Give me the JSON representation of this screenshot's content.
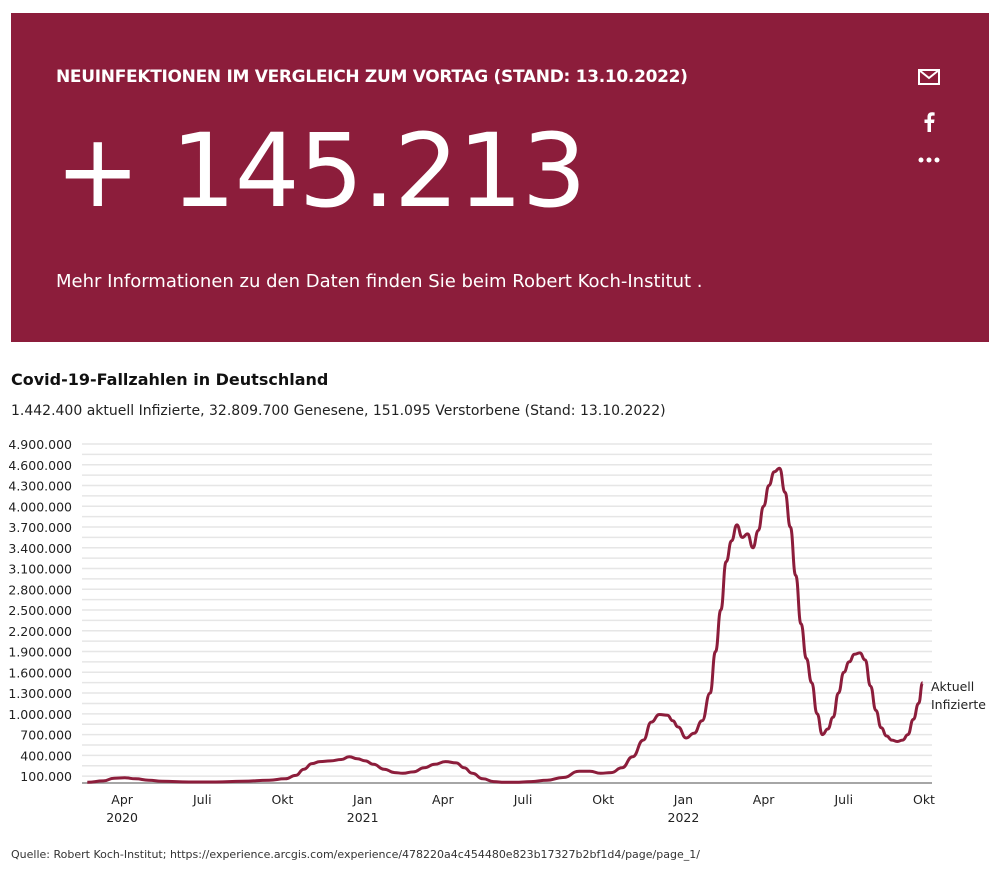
{
  "banner": {
    "title": "NEUINFEKTIONEN IM VERGLEICH ZUM VORTAG (STAND: 13.10.2022)",
    "value": "+ 145.213",
    "info": "Mehr Informationen zu den Daten finden Sie beim Robert Koch-Institut .",
    "background": "#8c1d3b",
    "share_icons": [
      "mail-icon",
      "facebook-icon",
      "more-icon"
    ]
  },
  "source": "Quelle: Robert Koch-Institut; https://experience.arcgis.com/experience/478220a4c454480e823b17327b2bf1d4/page/page_1/",
  "chart_data": {
    "type": "line",
    "title": "Covid-19-Fallzahlen in Deutschland",
    "subtitle": "1.442.400 aktuell Infizierte, 32.809.700 Genesene, 151.095 Verstorbene (Stand: 13.10.2022)",
    "xlabel": "",
    "ylabel": "",
    "line_color": "#8c1d3b",
    "grid": true,
    "ylim": [
      0,
      4900000
    ],
    "yticks": [
      100000,
      400000,
      700000,
      1000000,
      1300000,
      1600000,
      1900000,
      2200000,
      2500000,
      2800000,
      3100000,
      3400000,
      3700000,
      4000000,
      4300000,
      4600000,
      4900000
    ],
    "ytick_labels": [
      "100.000",
      "400.000",
      "700.000",
      "1.000.000",
      "1.300.000",
      "1.600.000",
      "1.900.000",
      "2.200.000",
      "2.500.000",
      "2.800.000",
      "3.100.000",
      "3.400.000",
      "3.700.000",
      "4.000.000",
      "4.300.000",
      "4.600.000",
      "4.900.000"
    ],
    "xlim_months": [
      0,
      31.8
    ],
    "xticks": [
      {
        "m": 1.5,
        "label": "Apr",
        "year": "2020"
      },
      {
        "m": 4.5,
        "label": "Juli",
        "year": ""
      },
      {
        "m": 7.5,
        "label": "Okt",
        "year": ""
      },
      {
        "m": 10.5,
        "label": "Jan",
        "year": "2021"
      },
      {
        "m": 13.5,
        "label": "Apr",
        "year": ""
      },
      {
        "m": 16.5,
        "label": "Juli",
        "year": ""
      },
      {
        "m": 19.5,
        "label": "Okt",
        "year": ""
      },
      {
        "m": 22.5,
        "label": "Jan",
        "year": "2022"
      },
      {
        "m": 25.5,
        "label": "Apr",
        "year": ""
      },
      {
        "m": 28.5,
        "label": "Juli",
        "year": ""
      },
      {
        "m": 31.5,
        "label": "Okt",
        "year": ""
      }
    ],
    "series": [
      {
        "name": "Aktuell Infizierte",
        "label_lines": [
          "Aktuell",
          "Infizierte"
        ],
        "x_months": [
          0.2,
          0.8,
          1.2,
          1.6,
          2.0,
          2.5,
          3.0,
          4.0,
          5.0,
          6.0,
          7.0,
          7.6,
          8.0,
          8.3,
          8.6,
          8.9,
          9.3,
          9.7,
          10.0,
          10.3,
          10.6,
          10.9,
          11.3,
          11.7,
          12.0,
          12.4,
          12.8,
          13.2,
          13.6,
          14.0,
          14.3,
          14.6,
          15.0,
          15.4,
          15.8,
          16.2,
          16.8,
          17.4,
          18.0,
          18.6,
          19.0,
          19.4,
          19.8,
          20.2,
          20.6,
          21.0,
          21.3,
          21.6,
          21.9,
          22.1,
          22.3,
          22.6,
          22.9,
          23.2,
          23.5,
          23.7,
          23.9,
          24.1,
          24.3,
          24.5,
          24.7,
          24.9,
          25.1,
          25.3,
          25.5,
          25.7,
          25.9,
          26.1,
          26.3,
          26.5,
          26.7,
          26.9,
          27.1,
          27.3,
          27.5,
          27.7,
          27.9,
          28.1,
          28.3,
          28.5,
          28.7,
          28.9,
          29.1,
          29.3,
          29.5,
          29.7,
          29.9,
          30.1,
          30.3,
          30.5,
          30.7,
          30.9,
          31.1,
          31.3,
          31.45
        ],
        "values": [
          10000,
          30000,
          70000,
          75000,
          60000,
          40000,
          25000,
          15000,
          15000,
          25000,
          40000,
          60000,
          110000,
          200000,
          280000,
          310000,
          320000,
          340000,
          380000,
          350000,
          320000,
          270000,
          200000,
          150000,
          140000,
          160000,
          220000,
          270000,
          310000,
          290000,
          220000,
          140000,
          60000,
          20000,
          10000,
          10000,
          20000,
          40000,
          80000,
          170000,
          170000,
          140000,
          150000,
          220000,
          380000,
          620000,
          880000,
          990000,
          980000,
          900000,
          810000,
          650000,
          720000,
          900000,
          1300000,
          1900000,
          2500000,
          3200000,
          3500000,
          3730000,
          3550000,
          3600000,
          3400000,
          3650000,
          4000000,
          4300000,
          4500000,
          4550000,
          4200000,
          3700000,
          3000000,
          2300000,
          1800000,
          1450000,
          1000000,
          700000,
          780000,
          950000,
          1300000,
          1600000,
          1750000,
          1860000,
          1880000,
          1780000,
          1400000,
          1050000,
          800000,
          680000,
          620000,
          600000,
          620000,
          700000,
          920000,
          1150000,
          1450000
        ]
      }
    ]
  }
}
